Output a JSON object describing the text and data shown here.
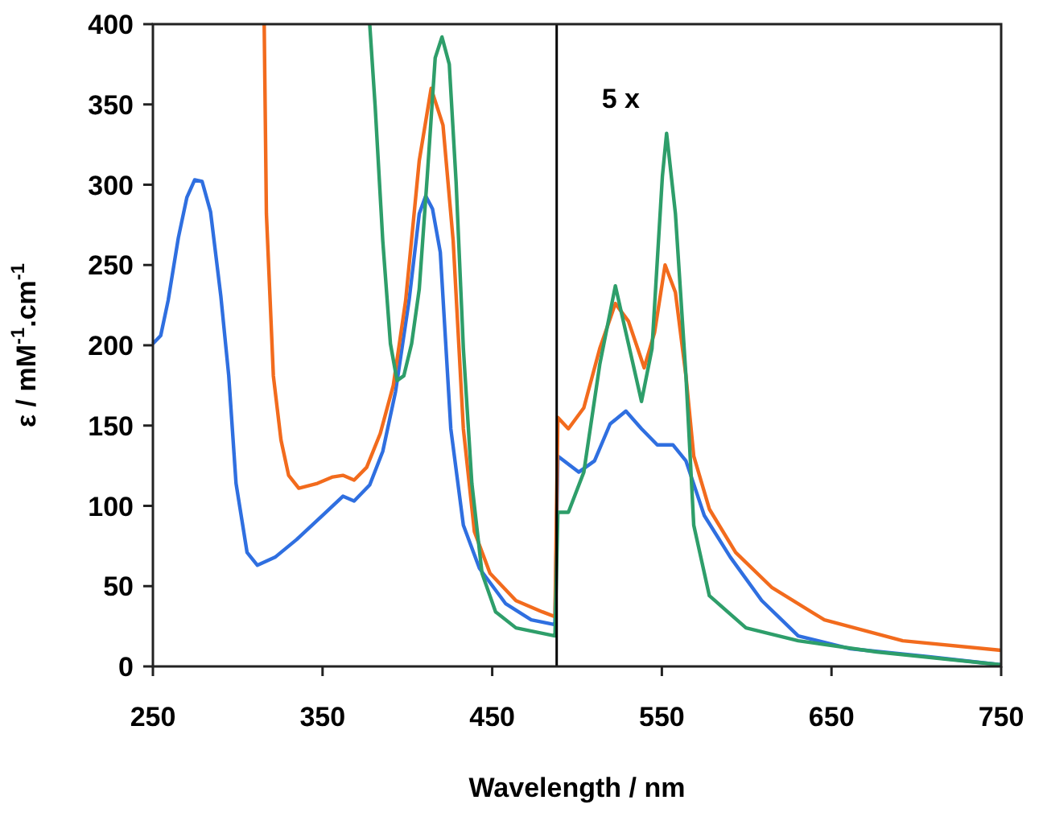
{
  "chart_data": {
    "type": "line",
    "xlabel": "Wavelength / nm",
    "ylabel": "ε / mM$^{-1}$.cm$^{-1}$",
    "xlim": [
      250,
      750
    ],
    "xticks": [
      250,
      350,
      450,
      550,
      650,
      750
    ],
    "ylim": [
      0,
      400
    ],
    "yticks": [
      0,
      50,
      100,
      150,
      200,
      250,
      300,
      350,
      400
    ],
    "grid": false,
    "marker": "none",
    "line_style": "solid",
    "ref_lines": [
      {
        "axis": "x",
        "value": 488,
        "color": "#000000"
      }
    ],
    "annotations": [
      "5 x"
    ],
    "series": [
      {
        "color": "#2f6fe0",
        "x": [
          250,
          254.6,
          259,
          265,
          270,
          274.6,
          279,
          284,
          290,
          294.7,
          299,
          305.5,
          311.6,
          322,
          334.7,
          350,
          362,
          368.6,
          377.8,
          385.5,
          393,
          401,
          407,
          410.8,
          414.8,
          419.4,
          425.6,
          433,
          442.5,
          458,
          473,
          487,
          488.7,
          501,
          510.3,
          519.5,
          528.8,
          538,
          547.3,
          556.5,
          564.2,
          575,
          590.4,
          608.9,
          630.4,
          661.2,
          707.5,
          750
        ],
        "values": [
          201,
          206,
          228,
          267,
          292,
          303,
          302,
          283,
          231,
          181,
          114,
          71,
          63,
          68,
          79,
          94,
          106,
          103,
          113,
          134,
          171,
          228,
          282,
          293,
          285,
          258,
          148,
          88,
          61,
          39,
          29,
          26,
          131,
          121,
          128,
          151,
          159,
          148,
          138,
          138,
          128,
          94,
          68,
          41,
          19,
          11,
          6,
          1
        ]
      },
      {
        "color": "#f26b1d",
        "x": [
          315.6,
          316.9,
          321,
          325.5,
          330,
          336,
          347,
          356,
          362,
          368.6,
          376,
          384,
          391.7,
          399,
          407,
          414,
          421,
          427,
          433,
          439.5,
          448.7,
          464,
          479.5,
          487,
          488.7,
          494.9,
          504,
          513.4,
          522.6,
          530.3,
          539.6,
          545.7,
          551.9,
          558,
          564.2,
          568.8,
          578,
          593.5,
          615,
          645.8,
          692,
          750
        ],
        "values": [
          400,
          282,
          181,
          141,
          119,
          111,
          114,
          118,
          119,
          116,
          124,
          145,
          175,
          228,
          315,
          360,
          337,
          265,
          148,
          84,
          58,
          41,
          34,
          31,
          155,
          148,
          161,
          198,
          226,
          215,
          186,
          208,
          250,
          233,
          181,
          131,
          98,
          71,
          49,
          29,
          16,
          10
        ]
      },
      {
        "color": "#2e9e6a",
        "x": [
          377.8,
          381,
          385.5,
          390,
          393.9,
          397.9,
          402.5,
          407,
          411.7,
          416.4,
          420.4,
          424.7,
          428.7,
          433,
          438,
          444,
          452,
          464,
          487,
          488.7,
          494.9,
          504,
          513.4,
          522.6,
          530.3,
          538,
          544.2,
          550.3,
          552.8,
          558,
          564.2,
          568.8,
          578,
          599.6,
          630.4,
          676.6,
          750
        ],
        "values": [
          400,
          349,
          265,
          201,
          178,
          181,
          201,
          235,
          305,
          379,
          392,
          375,
          302,
          198,
          114,
          58,
          34,
          24,
          19,
          96,
          96,
          121,
          188,
          237,
          201,
          165,
          198,
          305,
          332,
          282,
          181,
          88,
          44,
          24,
          16,
          9,
          1
        ]
      }
    ]
  }
}
